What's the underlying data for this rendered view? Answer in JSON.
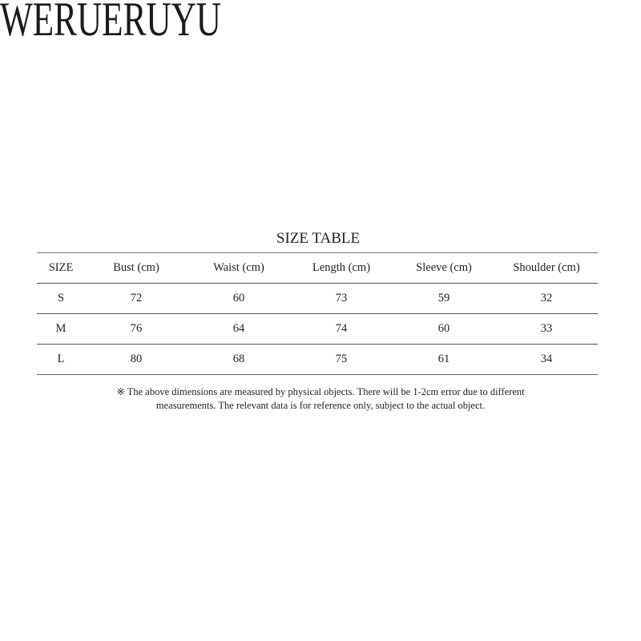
{
  "brand": "WERUERUYU",
  "title": "SIZE TABLE",
  "table": {
    "headers": [
      "SIZE",
      "Bust (cm)",
      "Waist (cm)",
      "Length (cm)",
      "Sleeve (cm)",
      "Shoulder (cm)"
    ],
    "rows": [
      [
        "S",
        "72",
        "60",
        "73",
        "59",
        "32"
      ],
      [
        "M",
        "76",
        "64",
        "74",
        "60",
        "33"
      ],
      [
        "L",
        "80",
        "68",
        "75",
        "61",
        "34"
      ]
    ]
  },
  "note": {
    "line1": "※ The above dimensions are measured by physical objects. There will be 1-2cm error due to different",
    "line2": "measurements. The relevant data is for reference only, subject to the actual object."
  }
}
